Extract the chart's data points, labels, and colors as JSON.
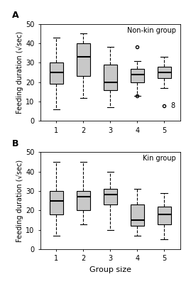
{
  "panel_A_label": "A",
  "panel_B_label": "B",
  "group_label_A": "Non-kin group",
  "group_label_B": "Kin group",
  "xlabel": "Group size",
  "ylabel": "Feeding duration (√sec)",
  "ylim": [
    0,
    50
  ],
  "yticks": [
    0,
    10,
    20,
    30,
    40,
    50
  ],
  "xticks": [
    1,
    2,
    3,
    4,
    5
  ],
  "box_facecolor": "#C8C8C8",
  "median_color": "#000000",
  "line_color": "#000000",
  "background_color": "#FFFFFF",
  "panel_A_boxes": [
    {
      "group": 1,
      "q1": 19,
      "median": 25,
      "q3": 30,
      "whislo": 6,
      "whishi": 43,
      "fliers": []
    },
    {
      "group": 2,
      "q1": 23,
      "median": 33,
      "q3": 40,
      "whislo": 12,
      "whishi": 45,
      "fliers": []
    },
    {
      "group": 3,
      "q1": 16,
      "median": 20,
      "q3": 29,
      "whislo": 7,
      "whishi": 38,
      "fliers": []
    },
    {
      "group": 4,
      "q1": 20,
      "median": 24,
      "q3": 27,
      "whislo": 13,
      "whishi": 31,
      "fliers": [
        13,
        38
      ]
    },
    {
      "group": 5,
      "q1": 22,
      "median": 25,
      "q3": 28,
      "whislo": 17,
      "whishi": 33,
      "fliers": [
        8
      ]
    }
  ],
  "panel_A_flier_label": {
    "group": 5,
    "y": 8,
    "text": "8"
  },
  "panel_B_boxes": [
    {
      "group": 1,
      "q1": 18,
      "median": 25,
      "q3": 30,
      "whislo": 7,
      "whishi": 45,
      "fliers": []
    },
    {
      "group": 2,
      "q1": 20,
      "median": 27,
      "q3": 30,
      "whislo": 13,
      "whishi": 45,
      "fliers": []
    },
    {
      "group": 3,
      "q1": 23,
      "median": 28,
      "q3": 31,
      "whislo": 10,
      "whishi": 40,
      "fliers": []
    },
    {
      "group": 4,
      "q1": 12,
      "median": 15,
      "q3": 23,
      "whislo": 7,
      "whishi": 31,
      "fliers": []
    },
    {
      "group": 5,
      "q1": 13,
      "median": 18,
      "q3": 22,
      "whislo": 5,
      "whishi": 29,
      "fliers": []
    }
  ],
  "box_width": 0.5,
  "linewidth": 0.8,
  "median_lw": 1.5,
  "tick_labelsize": 7,
  "ylabel_fontsize": 7,
  "xlabel_fontsize": 8,
  "panel_label_fontsize": 9,
  "legend_fontsize": 7
}
